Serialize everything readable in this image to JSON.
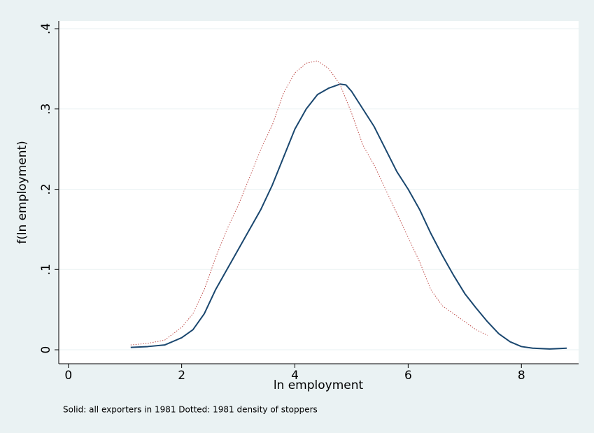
{
  "chart_data": {
    "type": "line",
    "xlabel": "ln employment",
    "ylabel": "f(ln employment)",
    "note": "Solid: all exporters in 1981 Dotted: 1981 density of stoppers",
    "xlim": [
      -0.17,
      9.01
    ],
    "ylim": [
      -0.0174,
      0.4096
    ],
    "xticks": [
      0,
      2,
      4,
      6,
      8
    ],
    "yticks": [
      0,
      {
        "value": 0.1,
        "label": ".1"
      },
      {
        "value": 0.2,
        "label": ".2"
      },
      {
        "value": 0.3,
        "label": ".3"
      },
      {
        "value": 0.4,
        "label": ".4"
      }
    ],
    "grid": true,
    "series": [
      {
        "color": "#1a476f",
        "style": "solid",
        "x": [
          1.1,
          1.4,
          1.7,
          2.0,
          2.2,
          2.4,
          2.6,
          2.8,
          3.0,
          3.2,
          3.4,
          3.6,
          3.8,
          4.0,
          4.2,
          4.4,
          4.6,
          4.8,
          4.9,
          5.0,
          5.2,
          5.4,
          5.6,
          5.8,
          6.0,
          6.2,
          6.4,
          6.6,
          6.8,
          7.0,
          7.2,
          7.4,
          7.6,
          7.8,
          8.0,
          8.2,
          8.5,
          8.8
        ],
        "values": [
          0.003,
          0.004,
          0.006,
          0.015,
          0.025,
          0.045,
          0.075,
          0.1,
          0.125,
          0.15,
          0.175,
          0.205,
          0.24,
          0.275,
          0.3,
          0.318,
          0.326,
          0.331,
          0.33,
          0.322,
          0.3,
          0.278,
          0.25,
          0.222,
          0.2,
          0.175,
          0.145,
          0.118,
          0.093,
          0.07,
          0.052,
          0.035,
          0.02,
          0.01,
          0.004,
          0.002,
          0.001,
          0.002
        ]
      },
      {
        "color": "#c0504d",
        "style": "dotted",
        "x": [
          1.1,
          1.4,
          1.7,
          2.0,
          2.2,
          2.4,
          2.6,
          2.8,
          3.0,
          3.2,
          3.4,
          3.6,
          3.8,
          4.0,
          4.2,
          4.4,
          4.6,
          4.8,
          5.0,
          5.2,
          5.4,
          5.6,
          5.8,
          6.0,
          6.2,
          6.4,
          6.6,
          6.8,
          7.0,
          7.2,
          7.4
        ],
        "values": [
          0.006,
          0.008,
          0.012,
          0.028,
          0.045,
          0.075,
          0.115,
          0.15,
          0.18,
          0.215,
          0.25,
          0.28,
          0.32,
          0.345,
          0.357,
          0.36,
          0.35,
          0.33,
          0.295,
          0.255,
          0.23,
          0.2,
          0.17,
          0.14,
          0.11,
          0.075,
          0.055,
          0.045,
          0.035,
          0.025,
          0.018
        ]
      }
    ]
  }
}
